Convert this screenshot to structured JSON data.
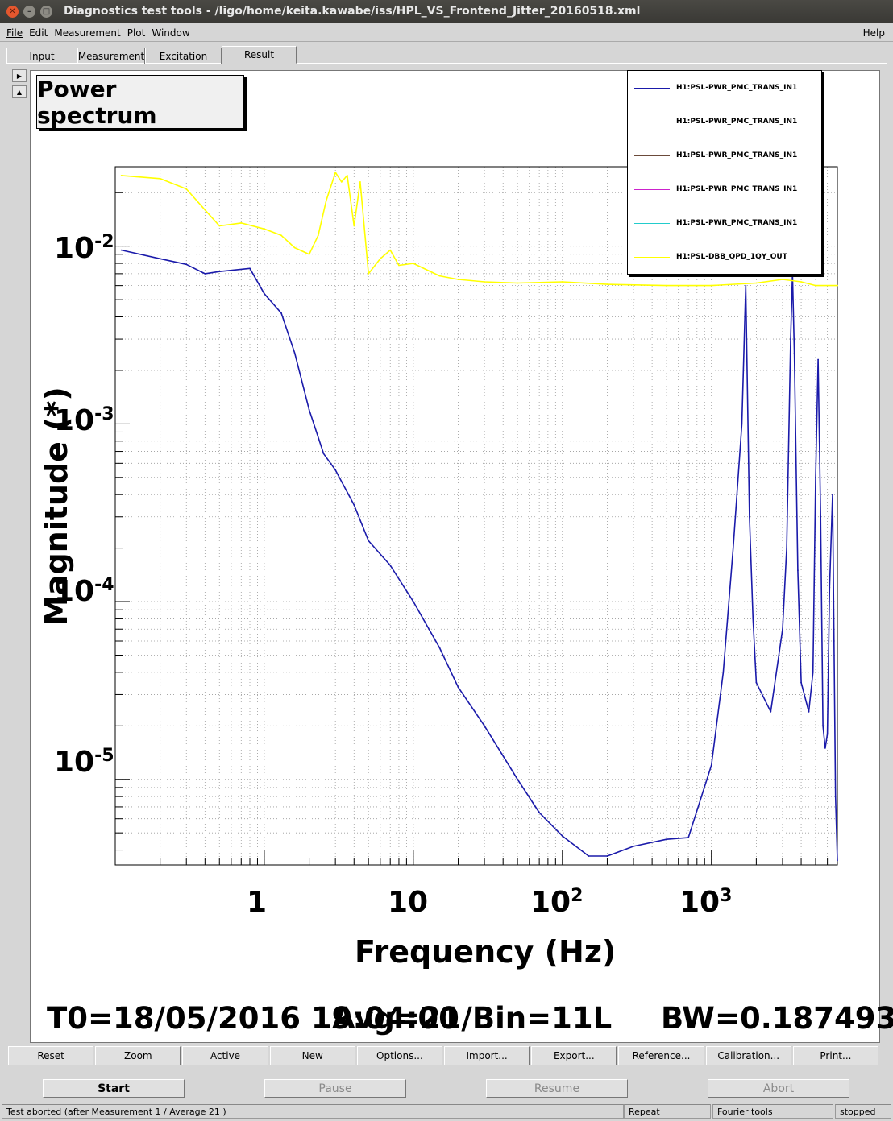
{
  "window": {
    "title": "Diagnostics test tools - /ligo/home/keita.kawabe/iss/HPL_VS_Frontend_Jitter_20160518.xml"
  },
  "menu": {
    "items": [
      "File",
      "Edit",
      "Measurement",
      "Plot",
      "Window"
    ],
    "help": "Help"
  },
  "tabs": [
    "Input",
    "Measurement",
    "Excitation",
    "Result"
  ],
  "plot": {
    "title": "Power spectrum",
    "xlabel": "Frequency (Hz)",
    "ylabel": "Magnitude (*)",
    "x_ticks": [
      {
        "base": "1",
        "exp": ""
      },
      {
        "base": "10",
        "exp": ""
      },
      {
        "base": "10",
        "exp": "2"
      },
      {
        "base": "10",
        "exp": "3"
      }
    ],
    "y_ticks": [
      {
        "base": "10",
        "exp": "-2"
      },
      {
        "base": "10",
        "exp": "-3"
      },
      {
        "base": "10",
        "exp": "-4"
      },
      {
        "base": "10",
        "exp": "-5"
      }
    ],
    "footer": {
      "t0": "T0=18/05/2016 19:04:00",
      "avg": "Avg=21/Bin=11L",
      "bw": "BW=0.187493"
    }
  },
  "legend": [
    {
      "name": "H1:PSL-PWR_PMC_TRANS_IN1",
      "color": "#1a1aaa"
    },
    {
      "name": "H1:PSL-PWR_PMC_TRANS_IN1",
      "color": "#22cc22"
    },
    {
      "name": "H1:PSL-PWR_PMC_TRANS_IN1",
      "color": "#6b4a3a"
    },
    {
      "name": "H1:PSL-PWR_PMC_TRANS_IN1",
      "color": "#cc22cc"
    },
    {
      "name": "H1:PSL-PWR_PMC_TRANS_IN1",
      "color": "#22cccc"
    },
    {
      "name": "H1:PSL-DBB_QPD_1QY_OUT",
      "color": "#ffff00"
    }
  ],
  "chart_data": {
    "type": "line",
    "title": "Power spectrum",
    "xlabel": "Frequency (Hz)",
    "ylabel": "Magnitude (*)",
    "xscale": "log",
    "yscale": "log",
    "xlim": [
      0.1,
      7000
    ],
    "ylim": [
      3.3e-06,
      0.028
    ],
    "grid": true,
    "legend_position": "top-right",
    "series": [
      {
        "name": "H1:PSL-PWR_PMC_TRANS_IN1",
        "color": "#1a1aaa",
        "x": [
          0.11,
          0.2,
          0.3,
          0.4,
          0.5,
          0.8,
          1.0,
          1.3,
          1.6,
          2.0,
          2.5,
          3.0,
          4.0,
          5.0,
          7.0,
          10,
          15,
          20,
          30,
          50,
          70,
          100,
          150,
          200,
          300,
          500,
          700,
          1000,
          1200,
          1400,
          1600,
          1700,
          1800,
          1900,
          2000,
          2500,
          3000,
          3200,
          3400,
          3500,
          3600,
          3800,
          4000,
          4500,
          4800,
          5000,
          5200,
          5400,
          5600,
          5800,
          6000,
          6200,
          6500,
          6800,
          7000
        ],
        "y": [
          0.0095,
          0.0085,
          0.0079,
          0.007,
          0.0072,
          0.0075,
          0.0054,
          0.0042,
          0.0025,
          0.0012,
          0.00068,
          0.00055,
          0.00035,
          0.00022,
          0.00016,
          0.0001,
          5.5e-05,
          3.3e-05,
          2e-05,
          1e-05,
          6.5e-06,
          4.8e-06,
          3.7e-06,
          3.7e-06,
          4.2e-06,
          4.6e-06,
          4.7e-06,
          1.2e-05,
          4e-05,
          0.0002,
          0.001,
          0.006,
          0.0003,
          8e-05,
          3.5e-05,
          2.4e-05,
          7e-05,
          0.0002,
          0.003,
          0.007,
          0.0025,
          0.00015,
          3.5e-05,
          2.4e-05,
          4e-05,
          0.0005,
          0.0023,
          0.0003,
          2e-05,
          1.5e-05,
          1.8e-05,
          0.00012,
          0.0004,
          8e-06,
          3.5e-06
        ]
      },
      {
        "name": "H1:PSL-DBB_QPD_1QY_OUT",
        "color": "#ffff00",
        "x": [
          0.11,
          0.2,
          0.3,
          0.4,
          0.5,
          0.7,
          1.0,
          1.3,
          1.6,
          2.0,
          2.3,
          2.6,
          3.0,
          3.3,
          3.6,
          4.0,
          4.4,
          5.0,
          6.0,
          7.0,
          8.0,
          10,
          15,
          20,
          30,
          50,
          100,
          200,
          500,
          1000,
          2000,
          3000,
          4000,
          5000,
          7000
        ],
        "y": [
          0.025,
          0.024,
          0.021,
          0.016,
          0.013,
          0.0135,
          0.0125,
          0.0115,
          0.0098,
          0.009,
          0.0115,
          0.018,
          0.026,
          0.023,
          0.025,
          0.013,
          0.023,
          0.007,
          0.0085,
          0.0095,
          0.0078,
          0.008,
          0.0068,
          0.0065,
          0.0063,
          0.0062,
          0.0063,
          0.0061,
          0.006,
          0.006,
          0.0062,
          0.0065,
          0.0063,
          0.006,
          0.006
        ]
      }
    ]
  },
  "toolbar": {
    "buttons": [
      "Reset",
      "Zoom",
      "Active",
      "New",
      "Options...",
      "Import...",
      "Export...",
      "Reference...",
      "Calibration...",
      "Print..."
    ]
  },
  "controls": {
    "start": "Start",
    "pause": "Pause",
    "resume": "Resume",
    "abort": "Abort"
  },
  "status": {
    "message": "Test aborted (after Measurement 1 / Average 21 )",
    "repeat": "Repeat",
    "tool": "Fourier tools",
    "state": "stopped"
  }
}
